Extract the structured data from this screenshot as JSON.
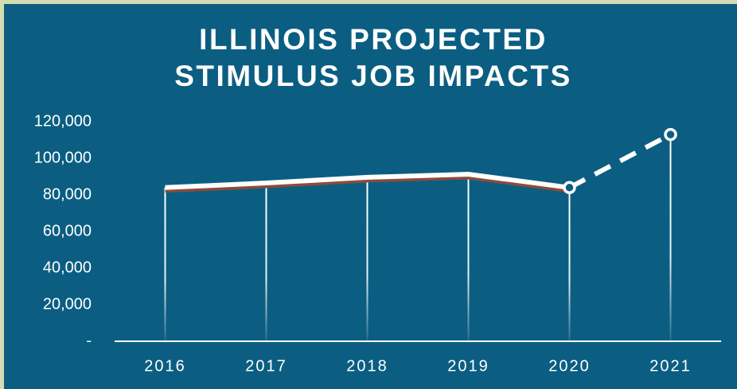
{
  "chart_data": {
    "type": "line",
    "title": [
      "ILLINOIS PROJECTED",
      "STIMULUS JOB IMPACTS"
    ],
    "categories": [
      "2016",
      "2017",
      "2018",
      "2019",
      "2020",
      "2021"
    ],
    "series": [
      {
        "color": "#ffffff",
        "shadow_color": "#8e4a3c",
        "dashed": false,
        "markers": false,
        "values": [
          84000,
          86500,
          89600,
          91300,
          84000,
          null
        ]
      },
      {
        "color": "#ffffff",
        "dashed": true,
        "markers": true,
        "values": [
          null,
          null,
          null,
          null,
          84000,
          113000
        ]
      }
    ],
    "ylim": [
      0,
      120000
    ],
    "yticks": [
      {
        "value": 0,
        "label": "-"
      },
      {
        "value": 20000,
        "label": "20,000"
      },
      {
        "value": 40000,
        "label": "40,000"
      },
      {
        "value": 60000,
        "label": "60,000"
      },
      {
        "value": 80000,
        "label": "80,000"
      },
      {
        "value": 100000,
        "label": "100,000"
      },
      {
        "value": 120000,
        "label": "120,000"
      }
    ],
    "grid": false
  }
}
